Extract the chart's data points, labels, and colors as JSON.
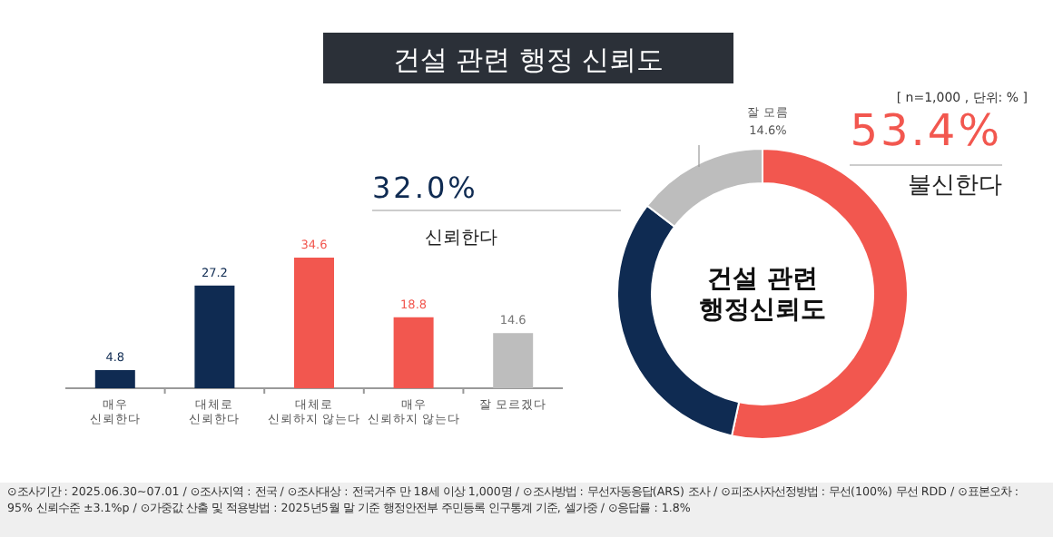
{
  "chart_data": [
    {
      "type": "bar",
      "title": "건설 관련 행정 신뢰도",
      "categories": [
        "매우\n신뢰한다",
        "대체로\n신뢰한다",
        "대체로\n신뢰하지 않는다",
        "매우\n신뢰하지 않는다",
        "잘 모르겠다"
      ],
      "values": [
        4.8,
        27.2,
        34.6,
        18.8,
        14.6
      ],
      "colors": [
        "#0f2b52",
        "#0f2b52",
        "#f2574f",
        "#f2574f",
        "#bdbdbd"
      ],
      "data_labels": true,
      "annotations": [
        "⊙조사기간 : 2025.06.30~07.01 / ⊙조사지역 : 전국 / ⊙조사대상 : 전국거주 만 18세 이상 1,000명 / ⊙조사방법 : 무선자동응답(ARS) 조사 / ⊙피조사자선정방법 : 무선(100%) 무선 RDD / ⊙표본오차 : 95% 신뢰수준 ±3.1%p / ⊙가중값 산출 및 적용방법 : 2025년5월 말 기준 행정안전부 주민등록 인구통계 기준, 셀가중 / ⊙응답률 : 1.8%"
      ]
    },
    {
      "type": "donut",
      "title": "건설 관련\n행정신뢰도",
      "categories": [
        "불신한다",
        "신뢰한다",
        "잘 모름"
      ],
      "values": [
        53.4,
        32.0,
        14.6
      ],
      "colors": [
        "#f2574f",
        "#0f2b52",
        "#bdbdbd"
      ],
      "value_labels": [
        "53.4%",
        "32.0%",
        "14.6%"
      ],
      "annotations": [
        "[ n=1,000 , 단위: % ]"
      ]
    }
  ]
}
